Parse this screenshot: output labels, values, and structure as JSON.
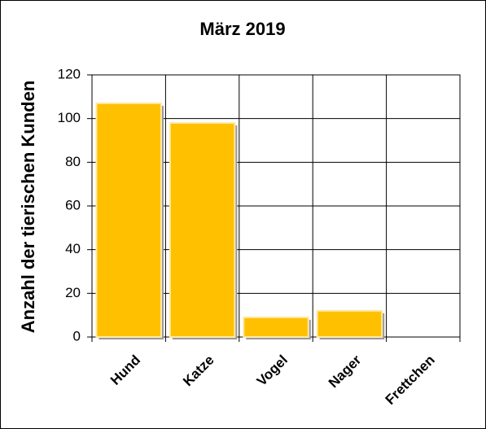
{
  "chart_data": {
    "type": "bar",
    "title": "März 2019",
    "y_label": "Anzahl der tierischen Kunden",
    "categories": [
      "Hund",
      "Katze",
      "Vogel",
      "Nager",
      "Frettchen"
    ],
    "values": [
      107,
      98,
      9,
      12,
      0
    ],
    "color": "#ffc000",
    "ylim": [
      0,
      120
    ],
    "yticks": [
      0,
      20,
      40,
      60,
      80,
      100,
      120
    ],
    "grid": true
  }
}
